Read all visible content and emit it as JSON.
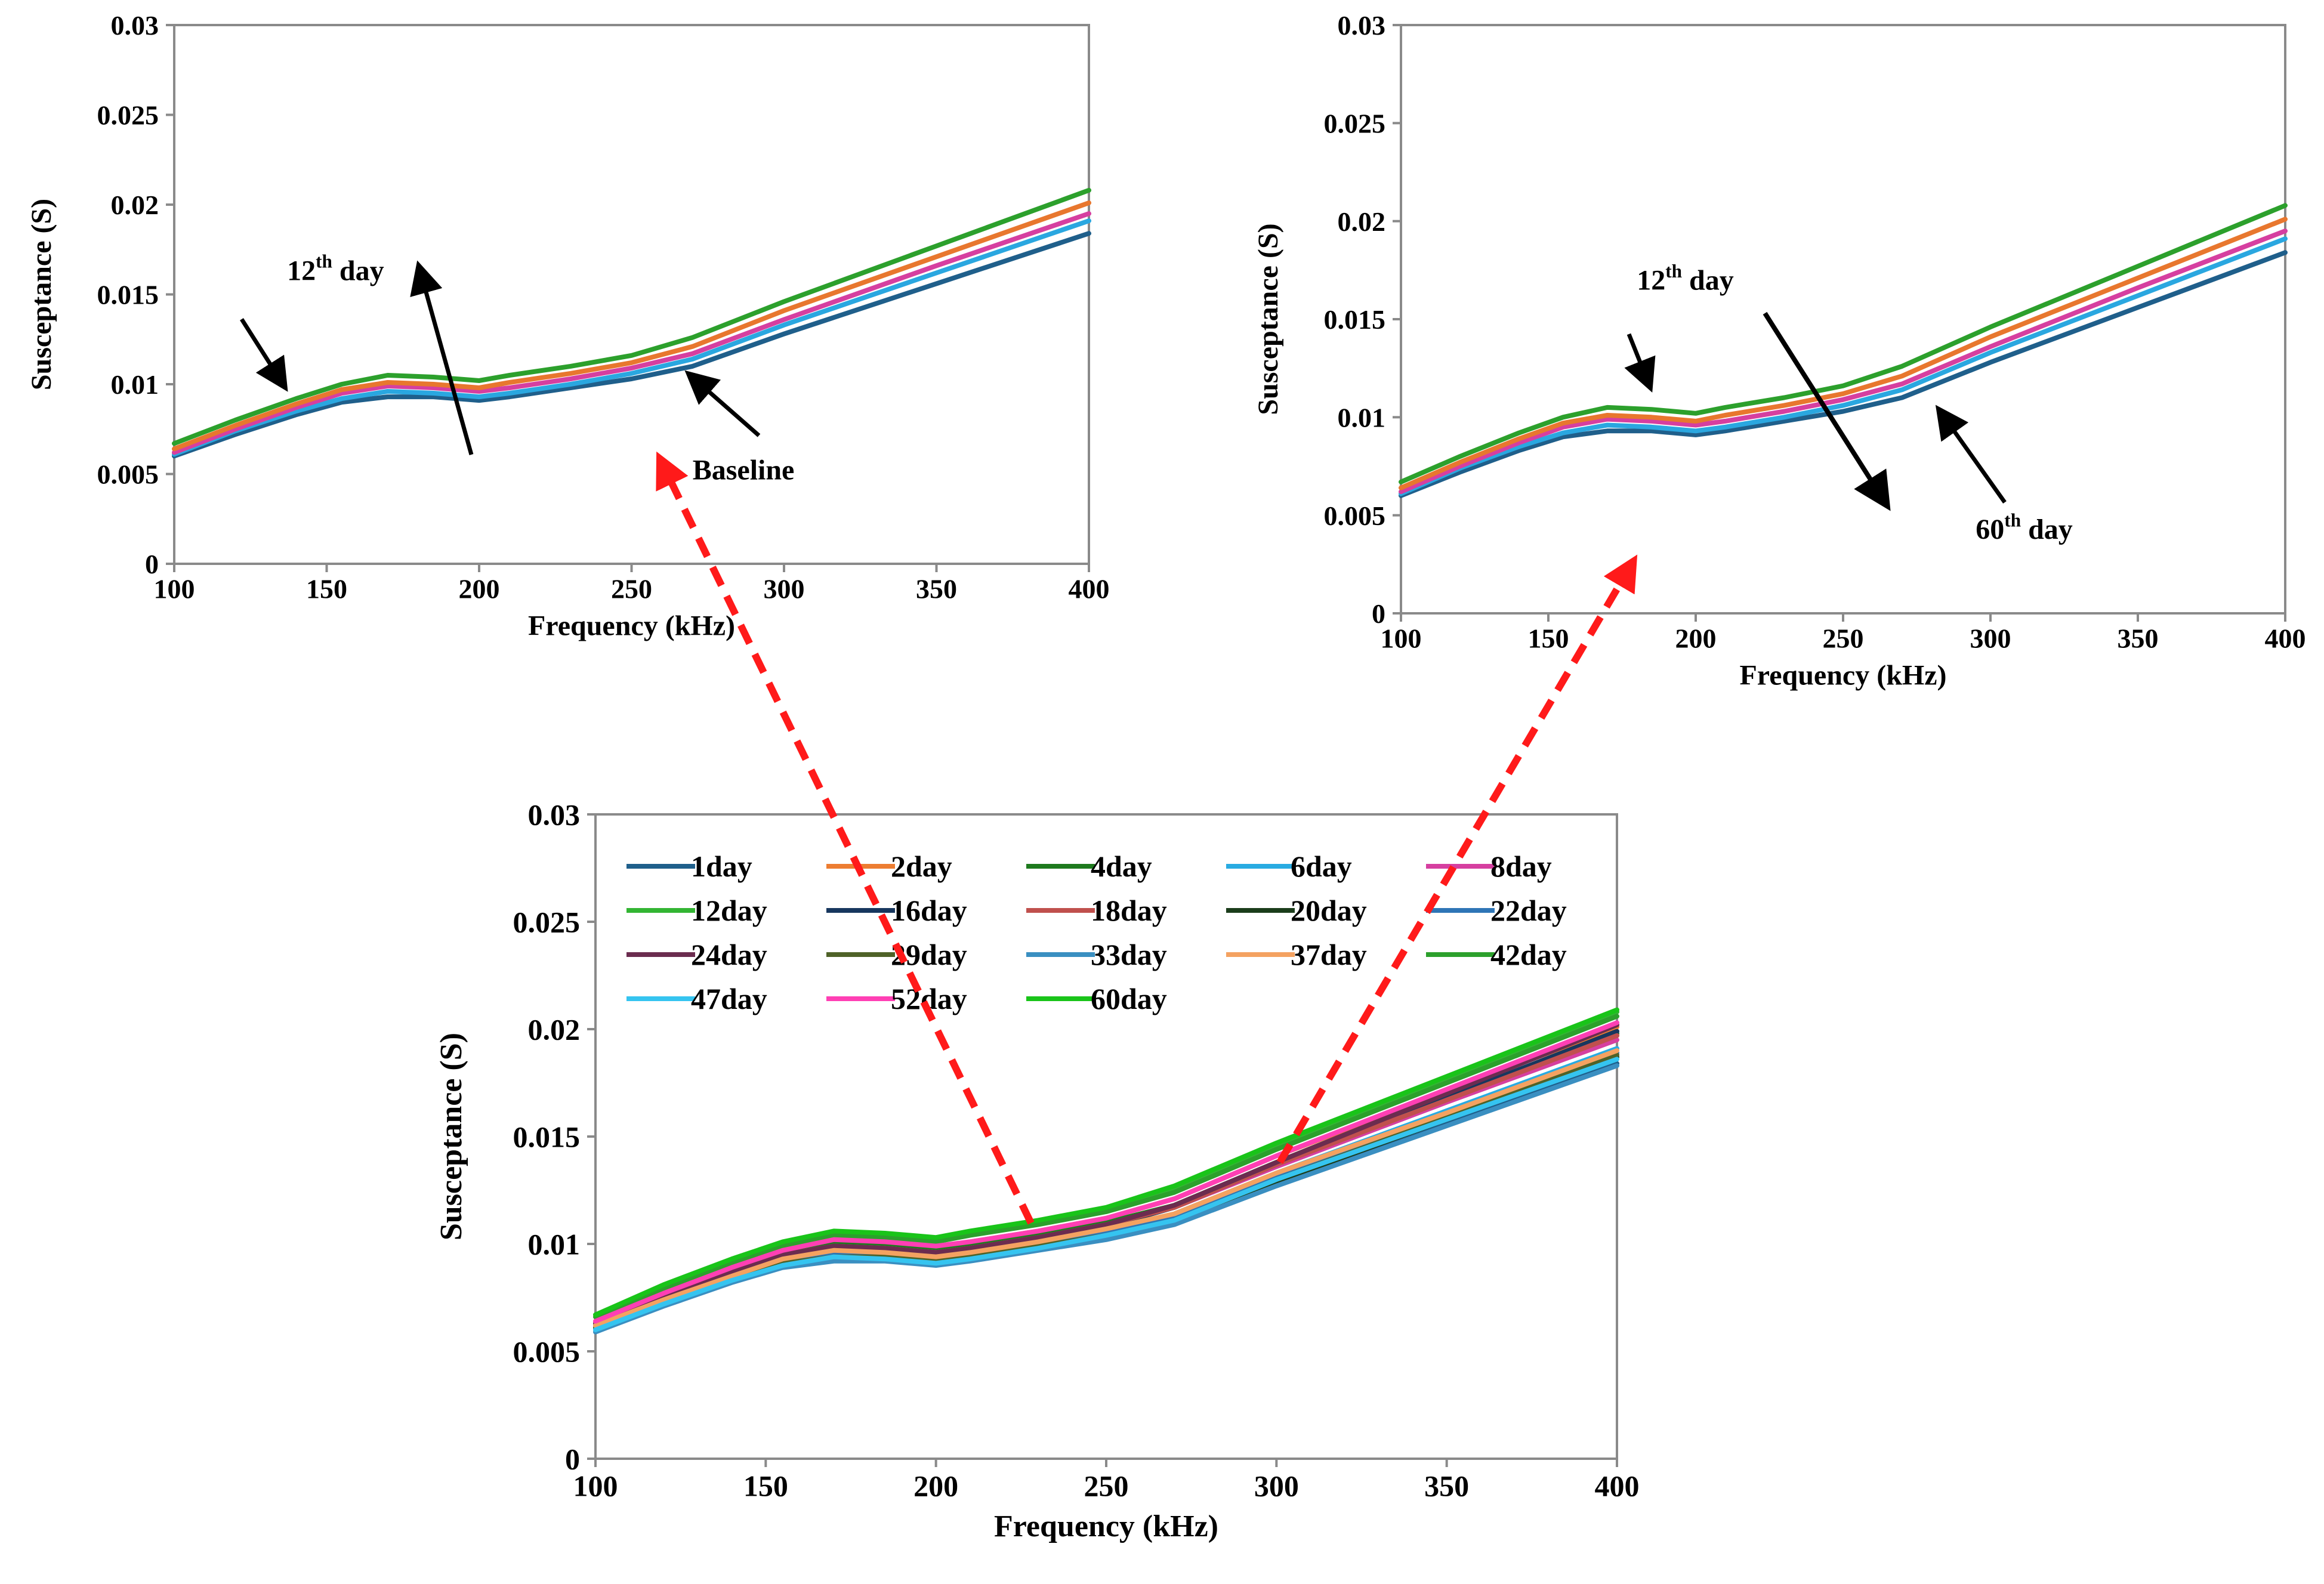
{
  "chart_data": [
    {
      "id": "top-left",
      "type": "line",
      "xlabel": "Frequency (kHz)",
      "ylabel": "Susceptance (S)",
      "xlim": [
        100,
        400
      ],
      "ylim": [
        0,
        0.03
      ],
      "xticks": [
        100,
        150,
        200,
        250,
        300,
        350,
        400
      ],
      "xtick_labels": [
        "100",
        "150",
        "200",
        "250",
        "300",
        "350",
        "400"
      ],
      "yticks": [
        0,
        0.005,
        0.01,
        0.015,
        0.02,
        0.025,
        0.03
      ],
      "ytick_labels": [
        "0",
        "0.005",
        "0.01",
        "0.015",
        "0.02",
        "0.025",
        "0.03"
      ],
      "x": [
        100,
        120,
        140,
        155,
        170,
        185,
        200,
        210,
        230,
        250,
        270,
        300,
        350,
        400
      ],
      "series": [
        {
          "name": "Baseline",
          "color": "#1f5f8b",
          "values": [
            0.006,
            0.0072,
            0.0083,
            0.009,
            0.0093,
            0.0093,
            0.0091,
            0.0093,
            0.0098,
            0.0103,
            0.011,
            0.0128,
            0.0156,
            0.0184
          ]
        },
        {
          "name": "",
          "color": "#2aa7e0",
          "values": [
            0.0061,
            0.0074,
            0.0085,
            0.0092,
            0.0096,
            0.0095,
            0.0093,
            0.0095,
            0.01,
            0.0106,
            0.0114,
            0.0133,
            0.0162,
            0.0191
          ]
        },
        {
          "name": "",
          "color": "#d63fa0",
          "values": [
            0.0062,
            0.0075,
            0.0087,
            0.0095,
            0.0099,
            0.0098,
            0.0096,
            0.0098,
            0.0103,
            0.0109,
            0.0117,
            0.0136,
            0.0166,
            0.0195
          ]
        },
        {
          "name": "",
          "color": "#e8772e",
          "values": [
            0.0064,
            0.0077,
            0.0089,
            0.0097,
            0.0101,
            0.01,
            0.0098,
            0.0101,
            0.0106,
            0.0112,
            0.0121,
            0.0141,
            0.0171,
            0.0201
          ]
        },
        {
          "name": "12th day",
          "color": "#2ca02c",
          "values": [
            0.0067,
            0.008,
            0.0092,
            0.01,
            0.0105,
            0.0104,
            0.0102,
            0.0105,
            0.011,
            0.0116,
            0.0126,
            0.0146,
            0.0177,
            0.0208
          ]
        }
      ],
      "annotations": [
        {
          "base": "12",
          "sup": "th",
          "rest": " day",
          "x": 137,
          "y": 0.0158
        },
        {
          "text": "Baseline",
          "x": 270,
          "y": 0.0047
        }
      ]
    },
    {
      "id": "top-right",
      "type": "line",
      "xlabel": "Frequency (kHz)",
      "ylabel": "Susceptance (S)",
      "xlim": [
        100,
        400
      ],
      "ylim": [
        0,
        0.03
      ],
      "xticks": [
        100,
        150,
        200,
        250,
        300,
        350,
        400
      ],
      "xtick_labels": [
        "100",
        "150",
        "200",
        "250",
        "300",
        "350",
        "400"
      ],
      "yticks": [
        0,
        0.005,
        0.01,
        0.015,
        0.02,
        0.025,
        0.03
      ],
      "ytick_labels": [
        "0",
        "0.005",
        "0.01",
        "0.015",
        "0.02",
        "0.025",
        "0.03"
      ],
      "x": [
        100,
        120,
        140,
        155,
        170,
        185,
        200,
        210,
        230,
        250,
        270,
        300,
        350,
        400
      ],
      "series": [
        {
          "name": "60th day",
          "color": "#1f5f8b",
          "values": [
            0.006,
            0.0072,
            0.0083,
            0.009,
            0.0093,
            0.0093,
            0.0091,
            0.0093,
            0.0098,
            0.0103,
            0.011,
            0.0128,
            0.0156,
            0.0184
          ]
        },
        {
          "name": "",
          "color": "#2aa7e0",
          "values": [
            0.0061,
            0.0074,
            0.0085,
            0.0092,
            0.0096,
            0.0095,
            0.0093,
            0.0095,
            0.01,
            0.0106,
            0.0114,
            0.0133,
            0.0162,
            0.0191
          ]
        },
        {
          "name": "",
          "color": "#d63fa0",
          "values": [
            0.0062,
            0.0075,
            0.0087,
            0.0095,
            0.0099,
            0.0098,
            0.0096,
            0.0098,
            0.0103,
            0.0109,
            0.0117,
            0.0136,
            0.0166,
            0.0195
          ]
        },
        {
          "name": "",
          "color": "#e8772e",
          "values": [
            0.0064,
            0.0077,
            0.0089,
            0.0097,
            0.0101,
            0.01,
            0.0098,
            0.0101,
            0.0106,
            0.0112,
            0.0121,
            0.0141,
            0.0171,
            0.0201
          ]
        },
        {
          "name": "12th day",
          "color": "#2ca02c",
          "values": [
            0.0067,
            0.008,
            0.0092,
            0.01,
            0.0105,
            0.0104,
            0.0102,
            0.0105,
            0.011,
            0.0116,
            0.0126,
            0.0146,
            0.0177,
            0.0208
          ]
        }
      ],
      "annotations": [
        {
          "base": "12",
          "sup": "th",
          "rest": " day",
          "x": 180,
          "y": 0.0165
        },
        {
          "base": "60",
          "sup": "th",
          "rest": " day",
          "x": 295,
          "y": 0.0038
        }
      ]
    },
    {
      "id": "bottom",
      "type": "line",
      "xlabel": "Frequency (kHz)",
      "ylabel": "Susceptance (S)",
      "xlim": [
        100,
        400
      ],
      "ylim": [
        0,
        0.03
      ],
      "xticks": [
        100,
        150,
        200,
        250,
        300,
        350,
        400
      ],
      "xtick_labels": [
        "100",
        "150",
        "200",
        "250",
        "300",
        "350",
        "400"
      ],
      "yticks": [
        0,
        0.005,
        0.01,
        0.015,
        0.02,
        0.025,
        0.03
      ],
      "ytick_labels": [
        "0",
        "0.005",
        "0.01",
        "0.015",
        "0.02",
        "0.025",
        "0.03"
      ],
      "legend_position": "top-left",
      "x": [
        100,
        120,
        140,
        155,
        170,
        185,
        200,
        210,
        230,
        250,
        270,
        300,
        350,
        400
      ],
      "series": [
        {
          "name": "1day",
          "color": "#1f5f8b",
          "values": [
            0.006,
            0.0072,
            0.0083,
            0.009,
            0.0093,
            0.0093,
            0.0091,
            0.0093,
            0.0098,
            0.0103,
            0.011,
            0.0128,
            0.0156,
            0.0184
          ]
        },
        {
          "name": "2day",
          "color": "#ed7d31",
          "values": [
            0.0064,
            0.0077,
            0.0089,
            0.0097,
            0.0101,
            0.01,
            0.0098,
            0.0101,
            0.0106,
            0.0112,
            0.0121,
            0.0141,
            0.0171,
            0.0201
          ]
        },
        {
          "name": "4day",
          "color": "#1e7a1e",
          "values": [
            0.0063,
            0.0076,
            0.0088,
            0.0096,
            0.01,
            0.0099,
            0.0097,
            0.0099,
            0.0104,
            0.011,
            0.0118,
            0.0138,
            0.0168,
            0.0198
          ]
        },
        {
          "name": "6day",
          "color": "#29abe2",
          "values": [
            0.0061,
            0.0074,
            0.0085,
            0.0092,
            0.0096,
            0.0095,
            0.0093,
            0.0095,
            0.01,
            0.0106,
            0.0114,
            0.0133,
            0.0162,
            0.0191
          ]
        },
        {
          "name": "8day",
          "color": "#d63fa0",
          "values": [
            0.0062,
            0.0075,
            0.0087,
            0.0095,
            0.0099,
            0.0098,
            0.0096,
            0.0098,
            0.0103,
            0.0109,
            0.0117,
            0.0136,
            0.0166,
            0.0195
          ]
        },
        {
          "name": "12day",
          "color": "#33b533",
          "values": [
            0.0067,
            0.008,
            0.0092,
            0.01,
            0.0105,
            0.0104,
            0.0102,
            0.0105,
            0.011,
            0.0116,
            0.0126,
            0.0146,
            0.0177,
            0.0208
          ]
        },
        {
          "name": "16day",
          "color": "#17375e",
          "values": [
            0.0062,
            0.0075,
            0.0086,
            0.0094,
            0.0098,
            0.0097,
            0.0095,
            0.0097,
            0.0102,
            0.0108,
            0.0117,
            0.0137,
            0.0168,
            0.0199
          ]
        },
        {
          "name": "18day",
          "color": "#c0504d",
          "values": [
            0.0063,
            0.0076,
            0.0088,
            0.0095,
            0.0099,
            0.0098,
            0.0096,
            0.0098,
            0.0103,
            0.0109,
            0.0117,
            0.0137,
            0.0167,
            0.0197
          ]
        },
        {
          "name": "20day",
          "color": "#1b3d1b",
          "values": [
            0.0061,
            0.0073,
            0.0084,
            0.0091,
            0.0094,
            0.0093,
            0.0092,
            0.0094,
            0.0099,
            0.0104,
            0.0111,
            0.0129,
            0.0158,
            0.0187
          ]
        },
        {
          "name": "22day",
          "color": "#2e75b6",
          "values": [
            0.006,
            0.0073,
            0.0084,
            0.0091,
            0.0095,
            0.0094,
            0.0092,
            0.0094,
            0.0099,
            0.0105,
            0.0112,
            0.0131,
            0.016,
            0.0189
          ]
        },
        {
          "name": "24day",
          "color": "#6b2c4f",
          "values": [
            0.0063,
            0.0076,
            0.0087,
            0.0095,
            0.0099,
            0.0098,
            0.0096,
            0.0098,
            0.0103,
            0.0109,
            0.0118,
            0.0138,
            0.017,
            0.0202
          ]
        },
        {
          "name": "29day",
          "color": "#4f6228",
          "values": [
            0.0061,
            0.0073,
            0.0084,
            0.0091,
            0.0094,
            0.0094,
            0.0092,
            0.0094,
            0.0099,
            0.0104,
            0.0111,
            0.013,
            0.0159,
            0.0188
          ]
        },
        {
          "name": "33day",
          "color": "#3a8fc1",
          "values": [
            0.0059,
            0.0071,
            0.0082,
            0.0089,
            0.0092,
            0.0092,
            0.009,
            0.0092,
            0.0097,
            0.0102,
            0.0109,
            0.0127,
            0.0155,
            0.0183
          ]
        },
        {
          "name": "37day",
          "color": "#f4a261",
          "values": [
            0.0062,
            0.0074,
            0.0085,
            0.0093,
            0.0097,
            0.0096,
            0.0094,
            0.0096,
            0.0101,
            0.0107,
            0.0114,
            0.0133,
            0.0161,
            0.019
          ]
        },
        {
          "name": "42day",
          "color": "#2ca02c",
          "values": [
            0.0066,
            0.0079,
            0.0091,
            0.0099,
            0.0104,
            0.0103,
            0.0101,
            0.0104,
            0.0109,
            0.0115,
            0.0124,
            0.0144,
            0.0175,
            0.0206
          ]
        },
        {
          "name": "47day",
          "color": "#35c4f0",
          "values": [
            0.006,
            0.0072,
            0.0083,
            0.009,
            0.0094,
            0.0093,
            0.0091,
            0.0093,
            0.0098,
            0.0104,
            0.0111,
            0.013,
            0.0158,
            0.0186
          ]
        },
        {
          "name": "52day",
          "color": "#ff3fb4",
          "values": [
            0.0064,
            0.0077,
            0.0089,
            0.0097,
            0.0102,
            0.0101,
            0.0099,
            0.0101,
            0.0106,
            0.0112,
            0.0121,
            0.0141,
            0.0172,
            0.0203
          ]
        },
        {
          "name": "60day",
          "color": "#19c419",
          "values": [
            0.0067,
            0.0081,
            0.0093,
            0.0101,
            0.0106,
            0.0105,
            0.0103,
            0.0106,
            0.0111,
            0.0117,
            0.0127,
            0.0147,
            0.0178,
            0.0209
          ]
        }
      ]
    }
  ]
}
